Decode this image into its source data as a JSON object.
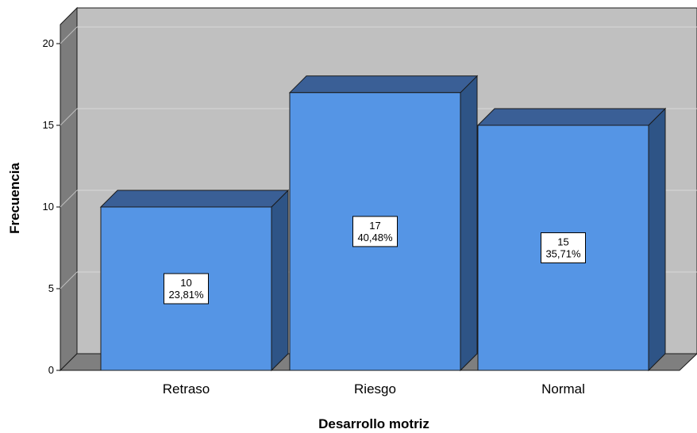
{
  "chart_data": {
    "type": "bar",
    "categories": [
      "Retraso",
      "Riesgo",
      "Normal"
    ],
    "values": [
      10,
      17,
      15
    ],
    "percent_labels": [
      "23,81%",
      "40,48%",
      "35,71%"
    ],
    "xlabel": "Desarrollo motriz",
    "ylabel": "Frecuencia",
    "ylim": [
      0,
      20
    ],
    "yticks": [
      0,
      5,
      10,
      15,
      20
    ],
    "grid": true,
    "style": "3d",
    "colors": {
      "bar_front": "#5595e5",
      "bar_top": "#3a5f96",
      "bar_side": "#2e5486",
      "back_wall": "#c0c0c0",
      "side_wall": "#7c7c7c",
      "floor": "#7f7f7f",
      "gridline": "#d9d9d9"
    }
  }
}
